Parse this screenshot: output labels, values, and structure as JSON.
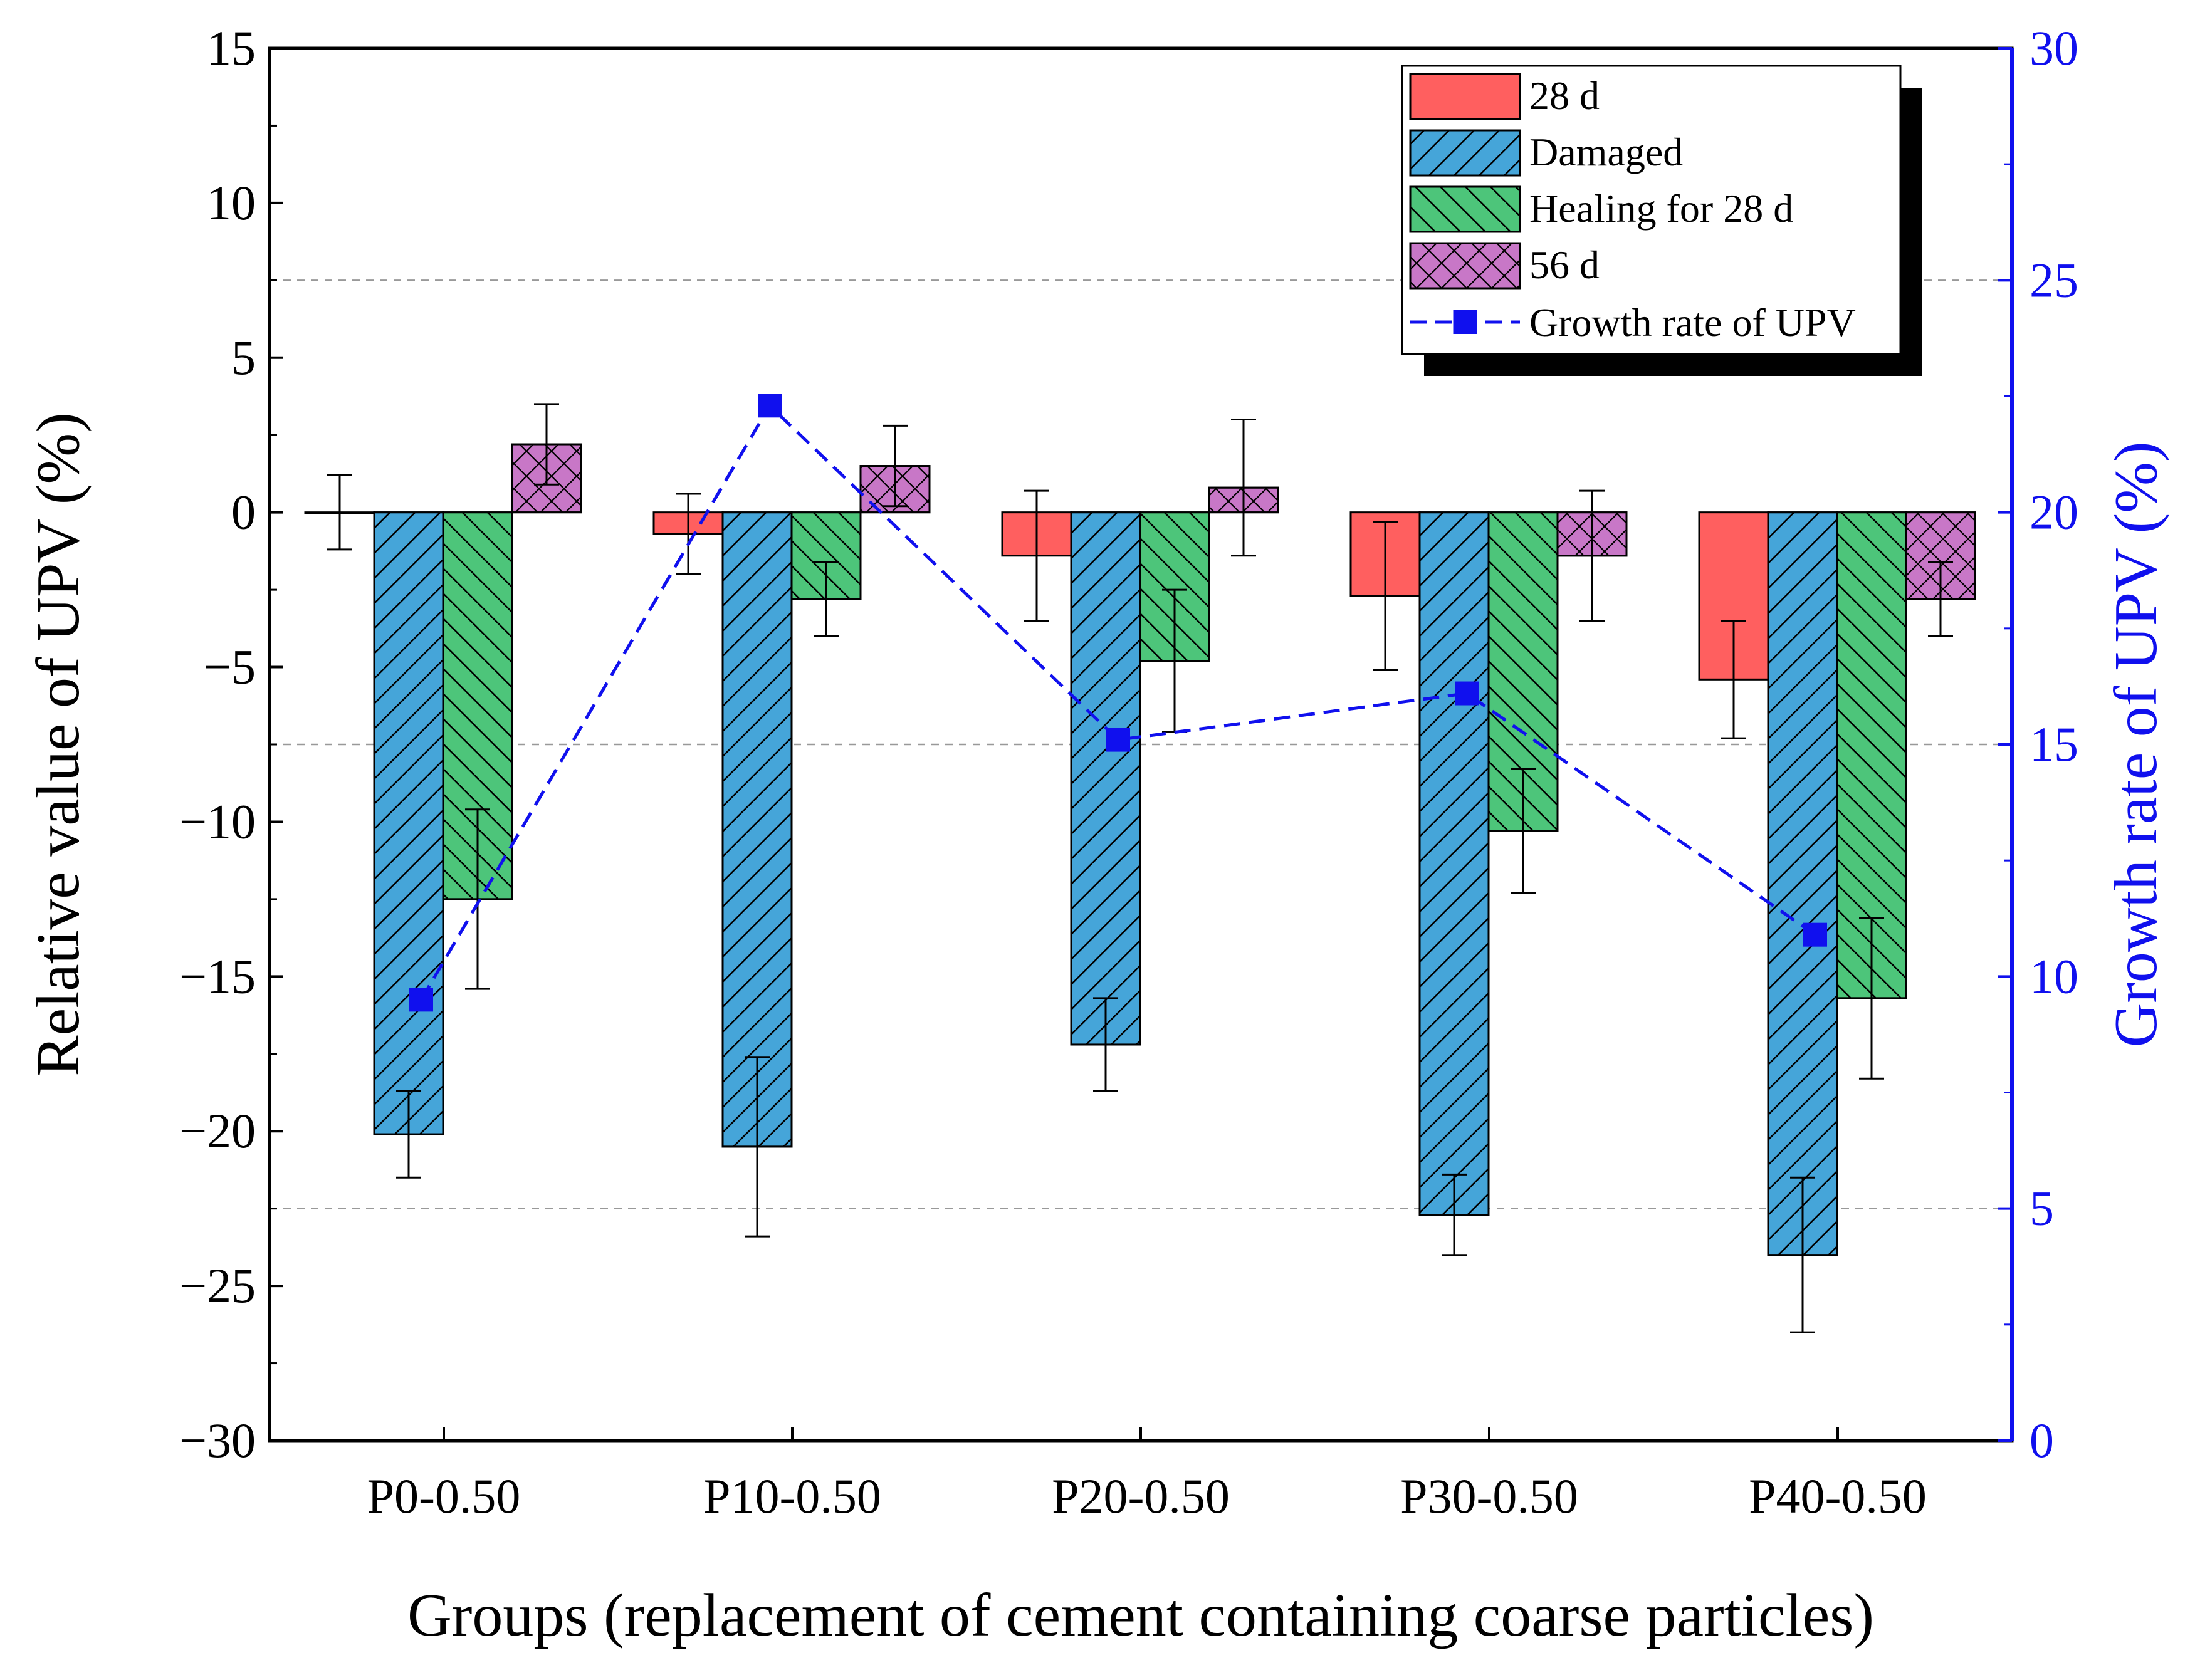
{
  "chart_data": {
    "type": "bar",
    "title": "",
    "xlabel": "Groups (replacement of cement containing coarse particles)",
    "ylabel": "Relative value of UPV (%)",
    "y2label": "Growth rate of UPV (%)",
    "categories": [
      "P0-0.50",
      "P10-0.50",
      "P20-0.50",
      "P30-0.50",
      "P40-0.50"
    ],
    "ylim": [
      -30,
      15
    ],
    "yticks": [
      -30,
      -25,
      -20,
      -15,
      -10,
      -5,
      0,
      5,
      10,
      15
    ],
    "ytick_labels": [
      "−30",
      "−25",
      "−20",
      "−15",
      "−10",
      "−5",
      "0",
      "5",
      "10",
      "15"
    ],
    "y2lim": [
      0,
      30
    ],
    "y2ticks": [
      0,
      5,
      10,
      15,
      20,
      25,
      30
    ],
    "y2tick_labels": [
      "0",
      "5",
      "10",
      "15",
      "20",
      "25",
      "30"
    ],
    "grid": "dashed horizontal at right-axis 5, 15, 25",
    "grid_values_right": [
      5,
      15,
      25
    ],
    "series": [
      {
        "name": "28 d",
        "color": "#FF5F5F",
        "hatch": "none",
        "values": [
          0.0,
          -0.7,
          -1.4,
          -2.7,
          -5.4
        ],
        "errors": [
          1.2,
          1.3,
          2.1,
          2.4,
          1.9
        ]
      },
      {
        "name": "Damaged",
        "color": "#45A5D9",
        "hatch": "forward-diagonal",
        "values": [
          -20.1,
          -20.5,
          -17.2,
          -22.7,
          -24.0
        ],
        "errors": [
          1.4,
          2.9,
          1.5,
          1.3,
          2.5
        ]
      },
      {
        "name": "Healing for 28 d",
        "color": "#4DC57A",
        "hatch": "back-diagonal",
        "values": [
          -12.5,
          -2.8,
          -4.8,
          -10.3,
          -15.7
        ],
        "errors": [
          2.9,
          1.2,
          2.3,
          2.0,
          2.6
        ]
      },
      {
        "name": "56 d",
        "color": "#C877C7",
        "hatch": "crosshatch",
        "values": [
          2.2,
          1.5,
          0.8,
          -1.4,
          -2.8
        ],
        "errors": [
          1.3,
          1.3,
          2.2,
          2.1,
          1.2
        ]
      }
    ],
    "line_series": {
      "name": "Growth rate of UPV",
      "axis": "right",
      "color": "#1010EE",
      "marker": "square",
      "style": "dashed",
      "values": [
        9.5,
        22.3,
        15.1,
        16.1,
        10.9
      ]
    },
    "legend": {
      "position": "top-right"
    }
  }
}
